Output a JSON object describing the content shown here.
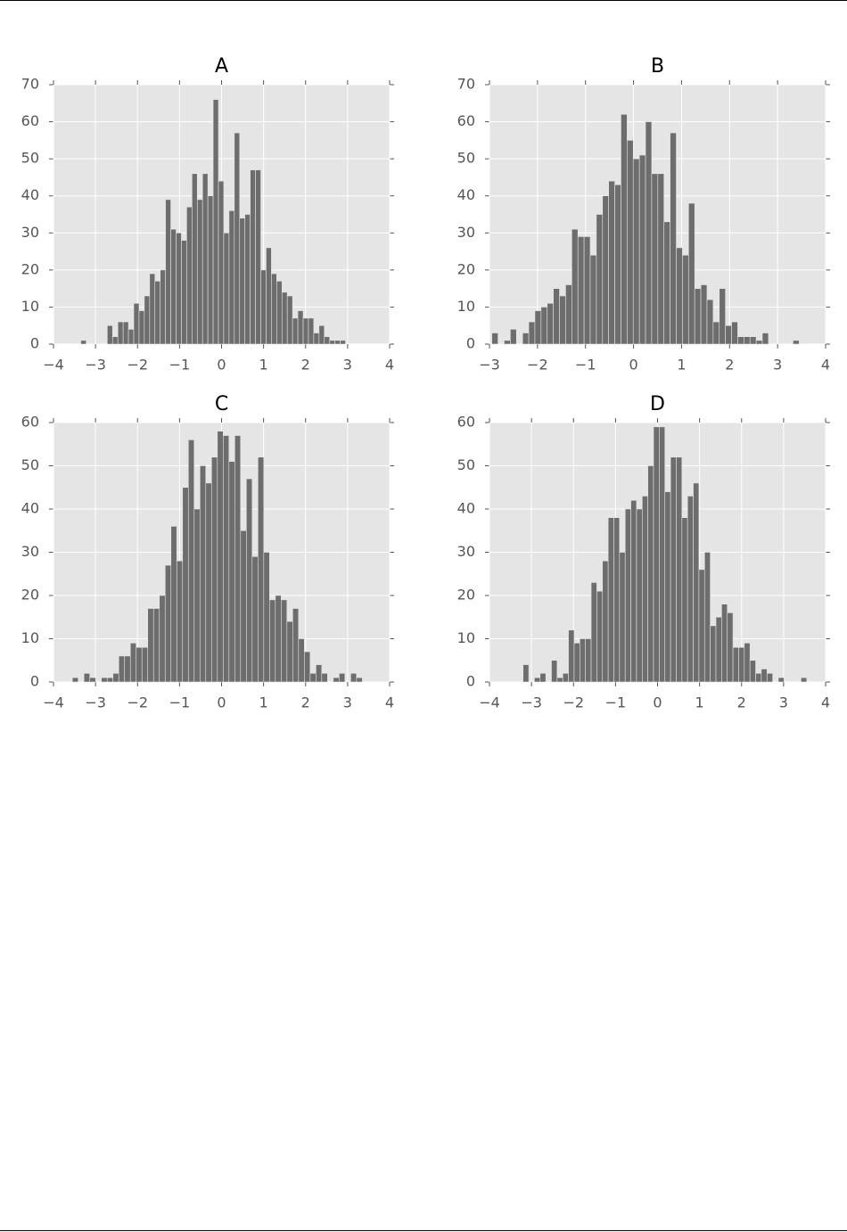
{
  "chart_data": [
    {
      "type": "histogram",
      "title": "A",
      "color": "#6d6d6d",
      "grid": true,
      "bins": [
        -3.35,
        -3.224,
        -3.098,
        -2.972,
        -2.846,
        -2.72,
        -2.594,
        -2.468,
        -2.342,
        -2.216,
        -2.09,
        -1.964,
        -1.838,
        -1.712,
        -1.586,
        -1.46,
        -1.334,
        -1.208,
        -1.082,
        -0.956,
        -0.83,
        -0.704,
        -0.578,
        -0.452,
        -0.326,
        -0.2,
        -0.074,
        0.052,
        0.178,
        0.304,
        0.43,
        0.556,
        0.682,
        0.808,
        0.934,
        1.06,
        1.186,
        1.312,
        1.438,
        1.564,
        1.69,
        1.816,
        1.942,
        2.068,
        2.194,
        2.32,
        2.446,
        2.572,
        2.698,
        2.824,
        2.95
      ],
      "values": [
        1,
        0,
        0,
        0,
        0,
        5,
        2,
        6,
        6,
        4,
        11,
        9,
        13,
        19,
        17,
        20,
        39,
        31,
        30,
        28,
        37,
        46,
        39,
        46,
        40,
        66,
        44,
        30,
        36,
        57,
        34,
        35,
        47,
        47,
        20,
        26,
        19,
        17,
        14,
        13,
        7,
        9,
        7,
        7,
        3,
        5,
        2,
        1,
        1,
        1
      ],
      "xlim": [
        -4,
        4
      ],
      "ylim": [
        0,
        70
      ],
      "xticks": [
        {
          "value": -4,
          "label": "−4"
        },
        {
          "value": -3,
          "label": "−3"
        },
        {
          "value": -2,
          "label": "−2"
        },
        {
          "value": -1,
          "label": "−1"
        },
        0,
        1,
        2,
        3,
        4
      ],
      "yticks": [
        0,
        10,
        20,
        30,
        40,
        50,
        60,
        70
      ]
    },
    {
      "type": "histogram",
      "title": "B",
      "color": "#6d6d6d",
      "grid": true,
      "bins": [
        -2.95,
        -2.822,
        -2.694,
        -2.566,
        -2.438,
        -2.31,
        -2.182,
        -2.054,
        -1.926,
        -1.798,
        -1.67,
        -1.542,
        -1.414,
        -1.286,
        -1.158,
        -1.03,
        -0.902,
        -0.774,
        -0.646,
        -0.518,
        -0.39,
        -0.262,
        -0.134,
        -0.006,
        0.122,
        0.25,
        0.378,
        0.506,
        0.634,
        0.762,
        0.89,
        1.018,
        1.146,
        1.274,
        1.402,
        1.53,
        1.658,
        1.786,
        1.914,
        2.042,
        2.17,
        2.298,
        2.426,
        2.554,
        2.682,
        2.81,
        2.938,
        3.066,
        3.194,
        3.322,
        3.45
      ],
      "values": [
        3,
        0,
        1,
        4,
        0,
        3,
        6,
        9,
        10,
        11,
        15,
        13,
        16,
        31,
        29,
        29,
        24,
        35,
        40,
        44,
        43,
        62,
        55,
        50,
        51,
        60,
        46,
        46,
        33,
        57,
        26,
        24,
        38,
        15,
        16,
        12,
        6,
        15,
        5,
        6,
        2,
        2,
        2,
        1,
        3,
        0,
        0,
        0,
        0,
        1
      ],
      "xlim": [
        -3,
        4
      ],
      "ylim": [
        0,
        70
      ],
      "xticks": [
        {
          "value": -3,
          "label": "−3"
        },
        {
          "value": -2,
          "label": "−2"
        },
        {
          "value": -1,
          "label": "−1"
        },
        0,
        1,
        2,
        3,
        4
      ],
      "yticks": [
        0,
        10,
        20,
        30,
        40,
        50,
        60,
        70
      ]
    },
    {
      "type": "histogram",
      "title": "C",
      "color": "#6d6d6d",
      "grid": true,
      "bins": [
        -3.55,
        -3.412,
        -3.274,
        -3.136,
        -2.998,
        -2.86,
        -2.722,
        -2.584,
        -2.446,
        -2.308,
        -2.17,
        -2.032,
        -1.894,
        -1.756,
        -1.618,
        -1.48,
        -1.342,
        -1.204,
        -1.066,
        -0.928,
        -0.79,
        -0.652,
        -0.514,
        -0.376,
        -0.238,
        -0.1,
        0.038,
        0.176,
        0.314,
        0.452,
        0.59,
        0.728,
        0.866,
        1.004,
        1.142,
        1.28,
        1.418,
        1.556,
        1.694,
        1.832,
        1.97,
        2.108,
        2.246,
        2.384,
        2.522,
        2.66,
        2.798,
        2.936,
        3.074,
        3.212,
        3.35
      ],
      "values": [
        1,
        0,
        2,
        1,
        0,
        1,
        1,
        2,
        6,
        6,
        9,
        8,
        8,
        17,
        17,
        20,
        27,
        36,
        28,
        45,
        56,
        40,
        50,
        46,
        52,
        58,
        57,
        51,
        57,
        35,
        47,
        29,
        52,
        30,
        19,
        20,
        19,
        14,
        17,
        10,
        7,
        2,
        4,
        2,
        0,
        1,
        2,
        0,
        2,
        1
      ],
      "xlim": [
        -4,
        4
      ],
      "ylim": [
        0,
        60
      ],
      "xticks": [
        {
          "value": -4,
          "label": "−4"
        },
        {
          "value": -3,
          "label": "−3"
        },
        {
          "value": -2,
          "label": "−2"
        },
        {
          "value": -1,
          "label": "−1"
        },
        0,
        1,
        2,
        3,
        4
      ],
      "yticks": [
        0,
        10,
        20,
        30,
        40,
        50,
        60
      ]
    },
    {
      "type": "histogram",
      "title": "D",
      "color": "#6d6d6d",
      "grid": true,
      "bins": [
        -3.2,
        -3.065,
        -2.93,
        -2.795,
        -2.66,
        -2.525,
        -2.39,
        -2.255,
        -2.12,
        -1.985,
        -1.85,
        -1.715,
        -1.58,
        -1.445,
        -1.31,
        -1.175,
        -1.04,
        -0.905,
        -0.77,
        -0.635,
        -0.5,
        -0.365,
        -0.23,
        -0.095,
        0.04,
        0.175,
        0.31,
        0.445,
        0.58,
        0.715,
        0.85,
        0.985,
        1.12,
        1.255,
        1.39,
        1.525,
        1.66,
        1.795,
        1.93,
        2.065,
        2.2,
        2.335,
        2.47,
        2.605,
        2.74,
        2.875,
        3.01,
        3.145,
        3.28,
        3.415,
        3.55
      ],
      "values": [
        4,
        0,
        1,
        2,
        0,
        5,
        1,
        2,
        12,
        9,
        10,
        10,
        23,
        21,
        28,
        38,
        38,
        30,
        40,
        42,
        40,
        43,
        50,
        59,
        59,
        44,
        52,
        52,
        38,
        43,
        46,
        26,
        30,
        13,
        15,
        18,
        16,
        8,
        8,
        9,
        5,
        2,
        3,
        2,
        0,
        1,
        0,
        0,
        0,
        1
      ],
      "xlim": [
        -4,
        4
      ],
      "ylim": [
        0,
        60
      ],
      "xticks": [
        {
          "value": -4,
          "label": "−4"
        },
        {
          "value": -3,
          "label": "−3"
        },
        {
          "value": -2,
          "label": "−2"
        },
        {
          "value": -1,
          "label": "−1"
        },
        0,
        1,
        2,
        3,
        4
      ],
      "yticks": [
        0,
        10,
        20,
        30,
        40,
        50,
        60
      ]
    }
  ]
}
